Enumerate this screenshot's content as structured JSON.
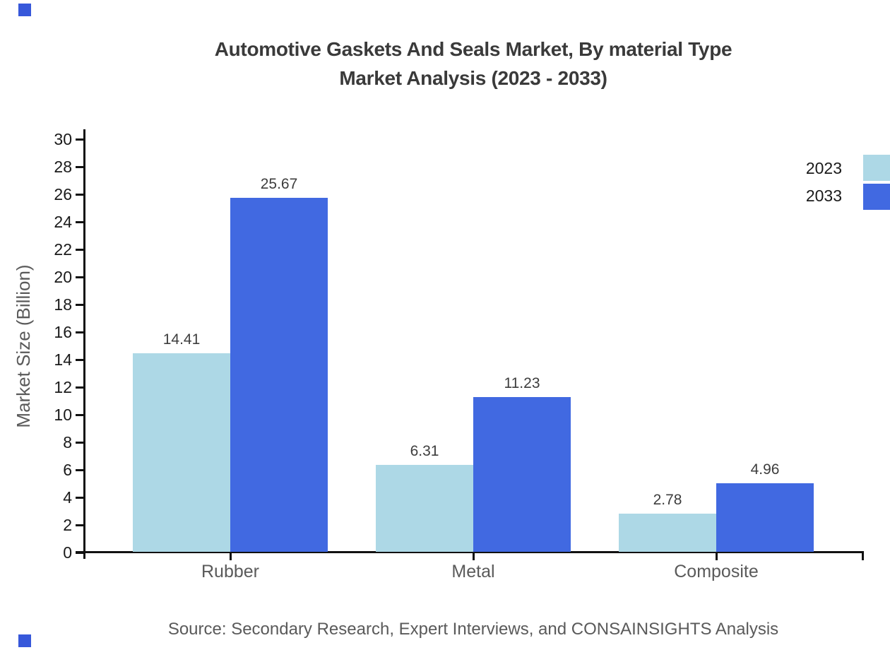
{
  "title": {
    "line1": "Automotive Gaskets And Seals Market, By material Type",
    "line2": "Market Analysis (2023 - 2033)"
  },
  "y_axis": {
    "label": "Market Size (Billion)",
    "tick_labels": [
      "0",
      "2",
      "4",
      "6",
      "8",
      "10",
      "12",
      "14",
      "16",
      "18",
      "20",
      "22",
      "24",
      "26",
      "28",
      "30"
    ]
  },
  "legend": {
    "entries": [
      {
        "label": "2023",
        "swatch_color": "#ADD8E6"
      },
      {
        "label": "2033",
        "swatch_color": "#4169E1"
      }
    ]
  },
  "source": "Source: Secondary Research, Expert Interviews, and CONSAINSIGHTS Analysis",
  "colors": {
    "series_2023": "#ADD8E6",
    "series_2033": "#4169E1",
    "axis": "#111111",
    "title_text": "#3A3A3A",
    "tick_text": "#1A1A1A",
    "muted_text": "#5A5A5A",
    "value_label_text": "#3D3D3D",
    "corner_accent": "#3758DA"
  },
  "chart_data": {
    "type": "bar",
    "categories": [
      "Rubber",
      "Metal",
      "Composite"
    ],
    "series": [
      {
        "name": "2023",
        "color": "#ADD8E6",
        "values": [
          14.41,
          6.31,
          2.78
        ]
      },
      {
        "name": "2033",
        "color": "#4169E1",
        "values": [
          25.67,
          11.23,
          4.96
        ]
      }
    ],
    "title": "Automotive Gaskets And Seals Market, By material Type Market Analysis (2023 - 2033)",
    "xlabel": "",
    "ylabel": "Market Size (Billion)",
    "ylim": [
      0,
      30
    ],
    "ytick_step": 2,
    "grid": false,
    "legend_position": "upper right, at right edge",
    "bar_value_labels": true,
    "value_label_format": "0.00"
  }
}
